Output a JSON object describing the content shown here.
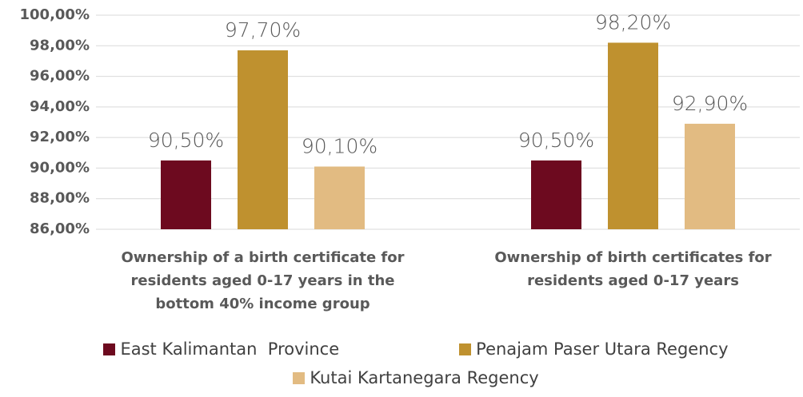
{
  "chart_data": {
    "type": "bar",
    "categories": [
      "Ownership of a birth certificate for residents aged 0-17 years in the bottom 40% income group",
      "Ownership of birth certificates for residents aged 0-17 years"
    ],
    "series": [
      {
        "name": "East Kalimantan  Province",
        "color": "#6d0a1f",
        "values": [
          90.5,
          90.5
        ],
        "value_labels": [
          "90,50%",
          "90,50%"
        ]
      },
      {
        "name": "Penajam Paser Utara Regency",
        "color": "#bf912f",
        "values": [
          97.7,
          98.2
        ],
        "value_labels": [
          "97,70%",
          "98,20%"
        ]
      },
      {
        "name": "Kutai Kartanegara Regency",
        "color": "#e2bb82",
        "values": [
          90.1,
          92.9
        ],
        "value_labels": [
          "90,10%",
          "92,90%"
        ]
      }
    ],
    "ylim": [
      86,
      100
    ],
    "yticks": [
      {
        "value": 86,
        "label": "86,00%"
      },
      {
        "value": 88,
        "label": "88,00%"
      },
      {
        "value": 90,
        "label": "90,00%"
      },
      {
        "value": 92,
        "label": "92,00%"
      },
      {
        "value": 94,
        "label": "94,00%"
      },
      {
        "value": 96,
        "label": "96,00%"
      },
      {
        "value": 98,
        "label": "98,00%"
      },
      {
        "value": 100,
        "label": "100,00%"
      }
    ],
    "grid": true,
    "legend": "bottom"
  }
}
